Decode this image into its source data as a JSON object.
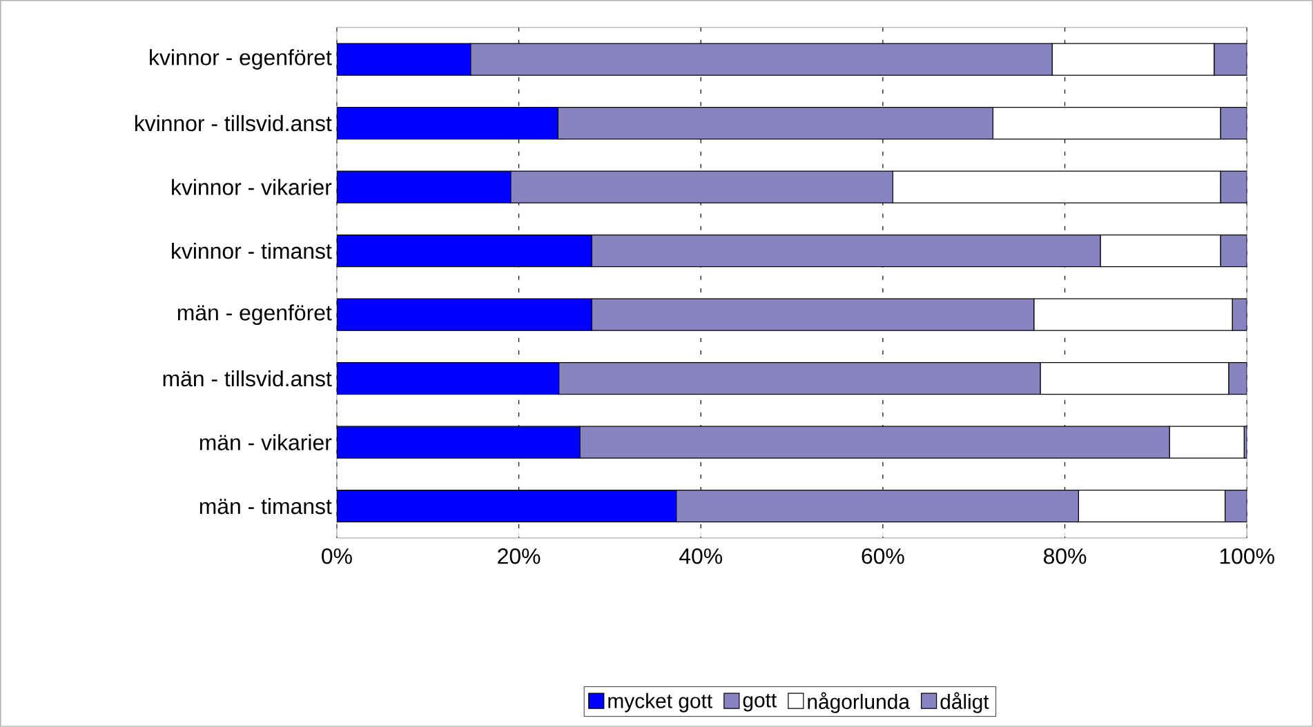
{
  "chart_data": {
    "type": "bar",
    "orientation": "horizontal",
    "stacked": true,
    "categories": [
      "kvinnor - egenföret",
      "kvinnor - tillsvid.anst",
      "kvinnor - vikarier",
      "kvinnor - timanst",
      "män - egenföret",
      "män - tillsvid.anst",
      "män - vikarier",
      "män - timanst"
    ],
    "series": [
      {
        "name": "mycket gott",
        "color": "#0000ff",
        "values": [
          14.7,
          24.3,
          19.1,
          28.0,
          28.0,
          24.4,
          26.7,
          37.3
        ]
      },
      {
        "name": "gott",
        "color": "#8884bf",
        "values": [
          63.9,
          47.8,
          42.0,
          55.9,
          48.6,
          52.9,
          64.8,
          44.2
        ]
      },
      {
        "name": "någorlunda",
        "color": "#ffffff",
        "values": [
          17.8,
          25.0,
          36.0,
          13.2,
          21.8,
          20.7,
          8.2,
          16.1
        ]
      },
      {
        "name": "dåligt",
        "color": "#8884bf",
        "values": [
          3.6,
          2.9,
          2.9,
          2.9,
          1.6,
          2.0,
          0.3,
          2.4
        ]
      }
    ],
    "xlim": [
      0,
      100
    ],
    "xticks": [
      {
        "value": 0,
        "label": "0%"
      },
      {
        "value": 20,
        "label": "20%"
      },
      {
        "value": 40,
        "label": "40%"
      },
      {
        "value": 60,
        "label": "60%"
      },
      {
        "value": 80,
        "label": "80%"
      },
      {
        "value": 100,
        "label": "100%"
      }
    ],
    "grid": "x",
    "legend": "bottom"
  }
}
